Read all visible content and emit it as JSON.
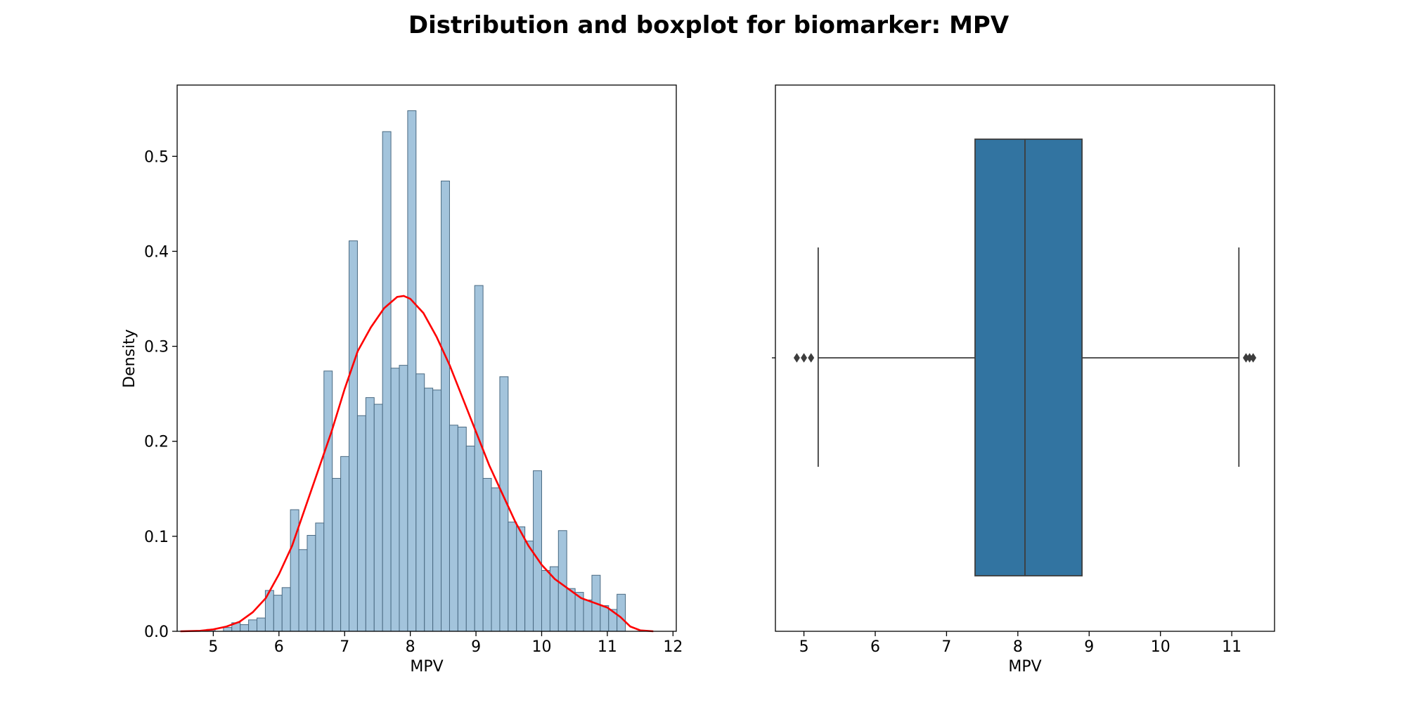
{
  "title": "Distribution and boxplot for biomarker: MPV",
  "chart_data": [
    {
      "type": "bar",
      "subtype": "histogram-with-kde",
      "xlabel": "MPV",
      "ylabel": "Density",
      "xlim": [
        4.45,
        12.05
      ],
      "ylim": [
        0,
        0.575
      ],
      "xticks": [
        5,
        6,
        7,
        8,
        9,
        10,
        11,
        12
      ],
      "yticks": [
        0.0,
        0.1,
        0.2,
        0.3,
        0.4,
        0.5
      ],
      "ytick_labels": [
        "0.0",
        "0.1",
        "0.2",
        "0.3",
        "0.4",
        "0.5"
      ],
      "bin_width": 0.1275,
      "bin_start": 4.9,
      "bar_color": "#a3c4dc",
      "bar_edge_color": "#4a6a82",
      "kde_color": "#ff0000",
      "grid": false,
      "bins": [
        [
          4.9,
          0.002
        ],
        [
          5.0275,
          0.0
        ],
        [
          5.155,
          0.004
        ],
        [
          5.2825,
          0.009
        ],
        [
          5.41,
          0.007
        ],
        [
          5.5375,
          0.012
        ],
        [
          5.665,
          0.014
        ],
        [
          5.7925,
          0.043
        ],
        [
          5.92,
          0.038
        ],
        [
          6.0475,
          0.046
        ],
        [
          6.175,
          0.128
        ],
        [
          6.3025,
          0.086
        ],
        [
          6.43,
          0.101
        ],
        [
          6.5575,
          0.114
        ],
        [
          6.685,
          0.274
        ],
        [
          6.8125,
          0.161
        ],
        [
          6.94,
          0.184
        ],
        [
          7.0675,
          0.411
        ],
        [
          7.195,
          0.227
        ],
        [
          7.3225,
          0.246
        ],
        [
          7.45,
          0.239
        ],
        [
          7.5775,
          0.526
        ],
        [
          7.705,
          0.277
        ],
        [
          7.8325,
          0.28
        ],
        [
          7.96,
          0.548
        ],
        [
          8.0875,
          0.271
        ],
        [
          8.215,
          0.256
        ],
        [
          8.3425,
          0.254
        ],
        [
          8.47,
          0.474
        ],
        [
          8.5975,
          0.217
        ],
        [
          8.725,
          0.215
        ],
        [
          8.8525,
          0.195
        ],
        [
          8.98,
          0.364
        ],
        [
          9.1075,
          0.161
        ],
        [
          9.235,
          0.151
        ],
        [
          9.3625,
          0.268
        ],
        [
          9.49,
          0.115
        ],
        [
          9.6175,
          0.11
        ],
        [
          9.745,
          0.095
        ],
        [
          9.8725,
          0.169
        ],
        [
          10.0,
          0.064
        ],
        [
          10.1275,
          0.068
        ],
        [
          10.255,
          0.106
        ],
        [
          10.3825,
          0.045
        ],
        [
          10.51,
          0.041
        ],
        [
          10.6375,
          0.033
        ],
        [
          10.765,
          0.059
        ],
        [
          10.8925,
          0.027
        ],
        [
          11.02,
          0.023
        ],
        [
          11.1475,
          0.039
        ]
      ],
      "kde": {
        "x": [
          4.5,
          4.8,
          5.0,
          5.2,
          5.4,
          5.6,
          5.8,
          6.0,
          6.2,
          6.4,
          6.6,
          6.8,
          7.0,
          7.2,
          7.4,
          7.6,
          7.8,
          7.9,
          8.0,
          8.2,
          8.4,
          8.6,
          8.8,
          9.0,
          9.2,
          9.4,
          9.6,
          9.8,
          10.0,
          10.2,
          10.4,
          10.6,
          10.8,
          11.0,
          11.2,
          11.35,
          11.5,
          11.7
        ],
        "y": [
          0.0,
          0.0005,
          0.002,
          0.005,
          0.01,
          0.02,
          0.035,
          0.06,
          0.09,
          0.13,
          0.17,
          0.21,
          0.255,
          0.295,
          0.32,
          0.34,
          0.352,
          0.353,
          0.35,
          0.335,
          0.31,
          0.28,
          0.245,
          0.21,
          0.175,
          0.145,
          0.115,
          0.09,
          0.07,
          0.055,
          0.045,
          0.035,
          0.03,
          0.025,
          0.015,
          0.005,
          0.001,
          0.0
        ]
      }
    },
    {
      "type": "boxplot",
      "xlabel": "MPV",
      "xlim": [
        4.6,
        11.6
      ],
      "xticks": [
        5,
        6,
        7,
        8,
        9,
        10,
        11
      ],
      "box_color": "#3274a1",
      "line_color": "#3d3d3d",
      "whisker_low": 5.2,
      "q1": 7.4,
      "median": 8.1,
      "q3": 8.9,
      "whisker_high": 11.1,
      "outliers": [
        4.9,
        5.0,
        5.1,
        11.2,
        11.25,
        11.3
      ]
    }
  ]
}
